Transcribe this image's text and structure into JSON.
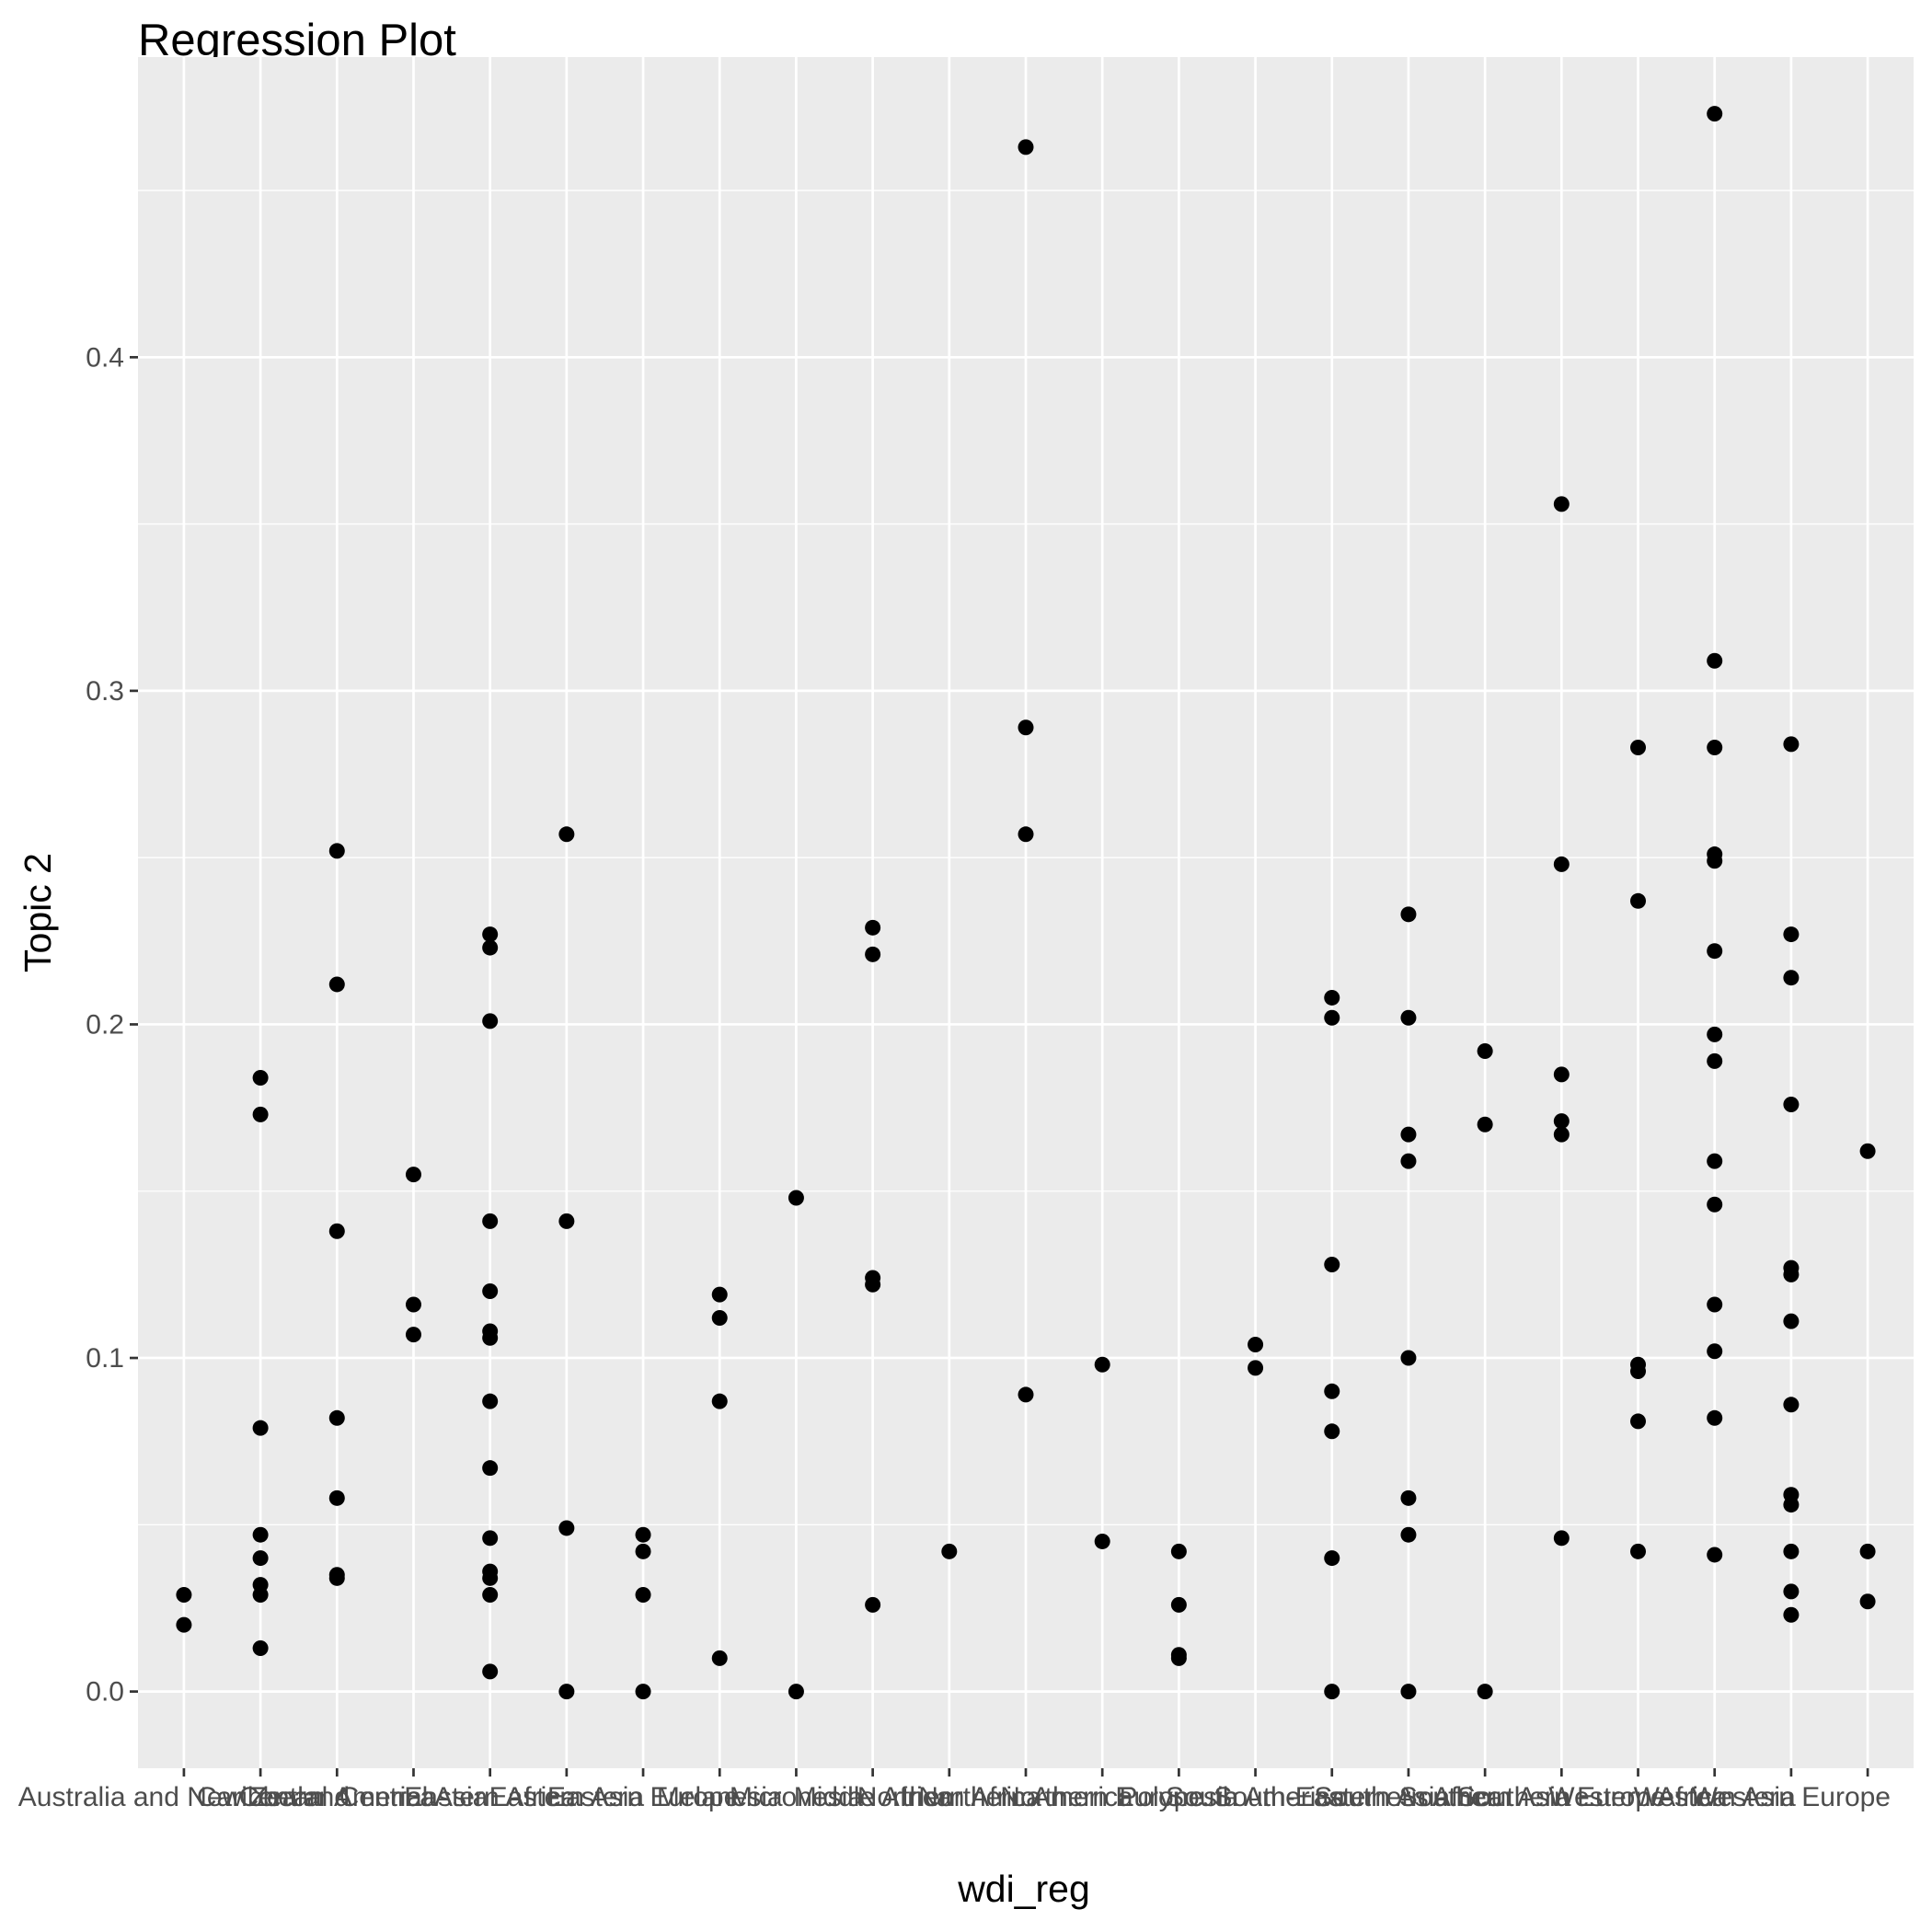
{
  "chart_data": {
    "type": "scatter",
    "title": "Regression Plot",
    "xlabel": "wdi_reg",
    "ylabel": "Topic 2",
    "ylim": [
      -0.023,
      0.49
    ],
    "yticks": [
      0.0,
      0.1,
      0.2,
      0.3,
      0.4
    ],
    "ytick_labels": [
      "0.0",
      "0.1",
      "0.2",
      "0.3",
      "0.4"
    ],
    "grid": true,
    "legend": "none",
    "colors": {
      "panel_background": "#ebebeb",
      "grid": "#ffffff",
      "point": "#000000",
      "tick_text": "#4d4d4d",
      "axis_ticks": "#333333"
    },
    "categories": [
      "Australia and New Zealand",
      "Caribbean",
      "Central America",
      "Central Asia",
      "Eastern Africa",
      "Eastern Asia",
      "Eastern Europe",
      "Melanesia",
      "Micronesia",
      "Middle Africa",
      "Northern Africa",
      "Northern America",
      "Northern Europe",
      "Polynesia",
      "South America",
      "South-Eastern Asia",
      "Southern Africa",
      "Southern Asia",
      "Southern Europe",
      "Western Africa",
      "Western Asia",
      "Western Europe",
      ""
    ],
    "points": [
      {
        "x": "Australia and New Zealand",
        "y": 0.029
      },
      {
        "x": "Australia and New Zealand",
        "y": 0.02
      },
      {
        "x": "Caribbean",
        "y": 0.184
      },
      {
        "x": "Caribbean",
        "y": 0.173
      },
      {
        "x": "Caribbean",
        "y": 0.079
      },
      {
        "x": "Caribbean",
        "y": 0.047
      },
      {
        "x": "Caribbean",
        "y": 0.04
      },
      {
        "x": "Caribbean",
        "y": 0.032
      },
      {
        "x": "Caribbean",
        "y": 0.029
      },
      {
        "x": "Caribbean",
        "y": 0.013
      },
      {
        "x": "Central America",
        "y": 0.252
      },
      {
        "x": "Central America",
        "y": 0.212
      },
      {
        "x": "Central America",
        "y": 0.138
      },
      {
        "x": "Central America",
        "y": 0.082
      },
      {
        "x": "Central America",
        "y": 0.058
      },
      {
        "x": "Central America",
        "y": 0.035
      },
      {
        "x": "Central America",
        "y": 0.034
      },
      {
        "x": "Central Asia",
        "y": 0.155
      },
      {
        "x": "Central Asia",
        "y": 0.116
      },
      {
        "x": "Central Asia",
        "y": 0.107
      },
      {
        "x": "Eastern Africa",
        "y": 0.227
      },
      {
        "x": "Eastern Africa",
        "y": 0.223
      },
      {
        "x": "Eastern Africa",
        "y": 0.201
      },
      {
        "x": "Eastern Africa",
        "y": 0.141
      },
      {
        "x": "Eastern Africa",
        "y": 0.12
      },
      {
        "x": "Eastern Africa",
        "y": 0.108
      },
      {
        "x": "Eastern Africa",
        "y": 0.106
      },
      {
        "x": "Eastern Africa",
        "y": 0.087
      },
      {
        "x": "Eastern Africa",
        "y": 0.067
      },
      {
        "x": "Eastern Africa",
        "y": 0.046
      },
      {
        "x": "Eastern Africa",
        "y": 0.036
      },
      {
        "x": "Eastern Africa",
        "y": 0.034
      },
      {
        "x": "Eastern Africa",
        "y": 0.029
      },
      {
        "x": "Eastern Africa",
        "y": 0.006
      },
      {
        "x": "Eastern Asia",
        "y": 0.257
      },
      {
        "x": "Eastern Asia",
        "y": 0.141
      },
      {
        "x": "Eastern Asia",
        "y": 0.049
      },
      {
        "x": "Eastern Asia",
        "y": 0.0
      },
      {
        "x": "Eastern Europe",
        "y": 0.047
      },
      {
        "x": "Eastern Europe",
        "y": 0.042
      },
      {
        "x": "Eastern Europe",
        "y": 0.029
      },
      {
        "x": "Eastern Europe",
        "y": 0.0
      },
      {
        "x": "Melanesia",
        "y": 0.119
      },
      {
        "x": "Melanesia",
        "y": 0.112
      },
      {
        "x": "Melanesia",
        "y": 0.087
      },
      {
        "x": "Melanesia",
        "y": 0.01
      },
      {
        "x": "Micronesia",
        "y": 0.148
      },
      {
        "x": "Micronesia",
        "y": 0.0
      },
      {
        "x": "Middle Africa",
        "y": 0.229
      },
      {
        "x": "Middle Africa",
        "y": 0.221
      },
      {
        "x": "Middle Africa",
        "y": 0.124
      },
      {
        "x": "Middle Africa",
        "y": 0.122
      },
      {
        "x": "Middle Africa",
        "y": 0.026
      },
      {
        "x": "Northern Africa",
        "y": 0.042
      },
      {
        "x": "Northern America",
        "y": 0.463
      },
      {
        "x": "Northern America",
        "y": 0.289
      },
      {
        "x": "Northern America",
        "y": 0.257
      },
      {
        "x": "Northern America",
        "y": 0.089
      },
      {
        "x": "Northern Europe",
        "y": 0.098
      },
      {
        "x": "Northern Europe",
        "y": 0.045
      },
      {
        "x": "Polynesia",
        "y": 0.042
      },
      {
        "x": "Polynesia",
        "y": 0.026
      },
      {
        "x": "Polynesia",
        "y": 0.011
      },
      {
        "x": "Polynesia",
        "y": 0.01
      },
      {
        "x": "South America",
        "y": 0.104
      },
      {
        "x": "South America",
        "y": 0.097
      },
      {
        "x": "South-Eastern Asia",
        "y": 0.208
      },
      {
        "x": "South-Eastern Asia",
        "y": 0.202
      },
      {
        "x": "South-Eastern Asia",
        "y": 0.128
      },
      {
        "x": "South-Eastern Asia",
        "y": 0.09
      },
      {
        "x": "South-Eastern Asia",
        "y": 0.078
      },
      {
        "x": "South-Eastern Asia",
        "y": 0.04
      },
      {
        "x": "South-Eastern Asia",
        "y": 0.0
      },
      {
        "x": "Southern Africa",
        "y": 0.233
      },
      {
        "x": "Southern Africa",
        "y": 0.202
      },
      {
        "x": "Southern Africa",
        "y": 0.167
      },
      {
        "x": "Southern Africa",
        "y": 0.159
      },
      {
        "x": "Southern Africa",
        "y": 0.1
      },
      {
        "x": "Southern Africa",
        "y": 0.058
      },
      {
        "x": "Southern Africa",
        "y": 0.047
      },
      {
        "x": "Southern Africa",
        "y": 0.0
      },
      {
        "x": "Southern Asia",
        "y": 0.192
      },
      {
        "x": "Southern Asia",
        "y": 0.17
      },
      {
        "x": "Southern Asia",
        "y": 0.0
      },
      {
        "x": "Southern Europe",
        "y": 0.356
      },
      {
        "x": "Southern Europe",
        "y": 0.248
      },
      {
        "x": "Southern Europe",
        "y": 0.185
      },
      {
        "x": "Southern Europe",
        "y": 0.171
      },
      {
        "x": "Southern Europe",
        "y": 0.167
      },
      {
        "x": "Southern Europe",
        "y": 0.046
      },
      {
        "x": "Western Africa",
        "y": 0.283
      },
      {
        "x": "Western Africa",
        "y": 0.237
      },
      {
        "x": "Western Africa",
        "y": 0.098
      },
      {
        "x": "Western Africa",
        "y": 0.096
      },
      {
        "x": "Western Africa",
        "y": 0.081
      },
      {
        "x": "Western Africa",
        "y": 0.042
      },
      {
        "x": "Western Asia",
        "y": 0.473
      },
      {
        "x": "Western Asia",
        "y": 0.309
      },
      {
        "x": "Western Asia",
        "y": 0.283
      },
      {
        "x": "Western Asia",
        "y": 0.251
      },
      {
        "x": "Western Asia",
        "y": 0.249
      },
      {
        "x": "Western Asia",
        "y": 0.222
      },
      {
        "x": "Western Asia",
        "y": 0.197
      },
      {
        "x": "Western Asia",
        "y": 0.189
      },
      {
        "x": "Western Asia",
        "y": 0.159
      },
      {
        "x": "Western Asia",
        "y": 0.146
      },
      {
        "x": "Western Asia",
        "y": 0.116
      },
      {
        "x": "Western Asia",
        "y": 0.102
      },
      {
        "x": "Western Asia",
        "y": 0.082
      },
      {
        "x": "Western Asia",
        "y": 0.041
      },
      {
        "x": "Western Europe",
        "y": 0.284
      },
      {
        "x": "Western Europe",
        "y": 0.227
      },
      {
        "x": "Western Europe",
        "y": 0.214
      },
      {
        "x": "Western Europe",
        "y": 0.176
      },
      {
        "x": "Western Europe",
        "y": 0.127
      },
      {
        "x": "Western Europe",
        "y": 0.125
      },
      {
        "x": "Western Europe",
        "y": 0.111
      },
      {
        "x": "Western Europe",
        "y": 0.086
      },
      {
        "x": "Western Europe",
        "y": 0.059
      },
      {
        "x": "Western Europe",
        "y": 0.056
      },
      {
        "x": "Western Europe",
        "y": 0.042
      },
      {
        "x": "Western Europe",
        "y": 0.03
      },
      {
        "x": "Western Europe",
        "y": 0.023
      },
      {
        "x": "",
        "y": 0.162
      },
      {
        "x": "",
        "y": 0.042
      },
      {
        "x": "",
        "y": 0.027
      }
    ]
  }
}
